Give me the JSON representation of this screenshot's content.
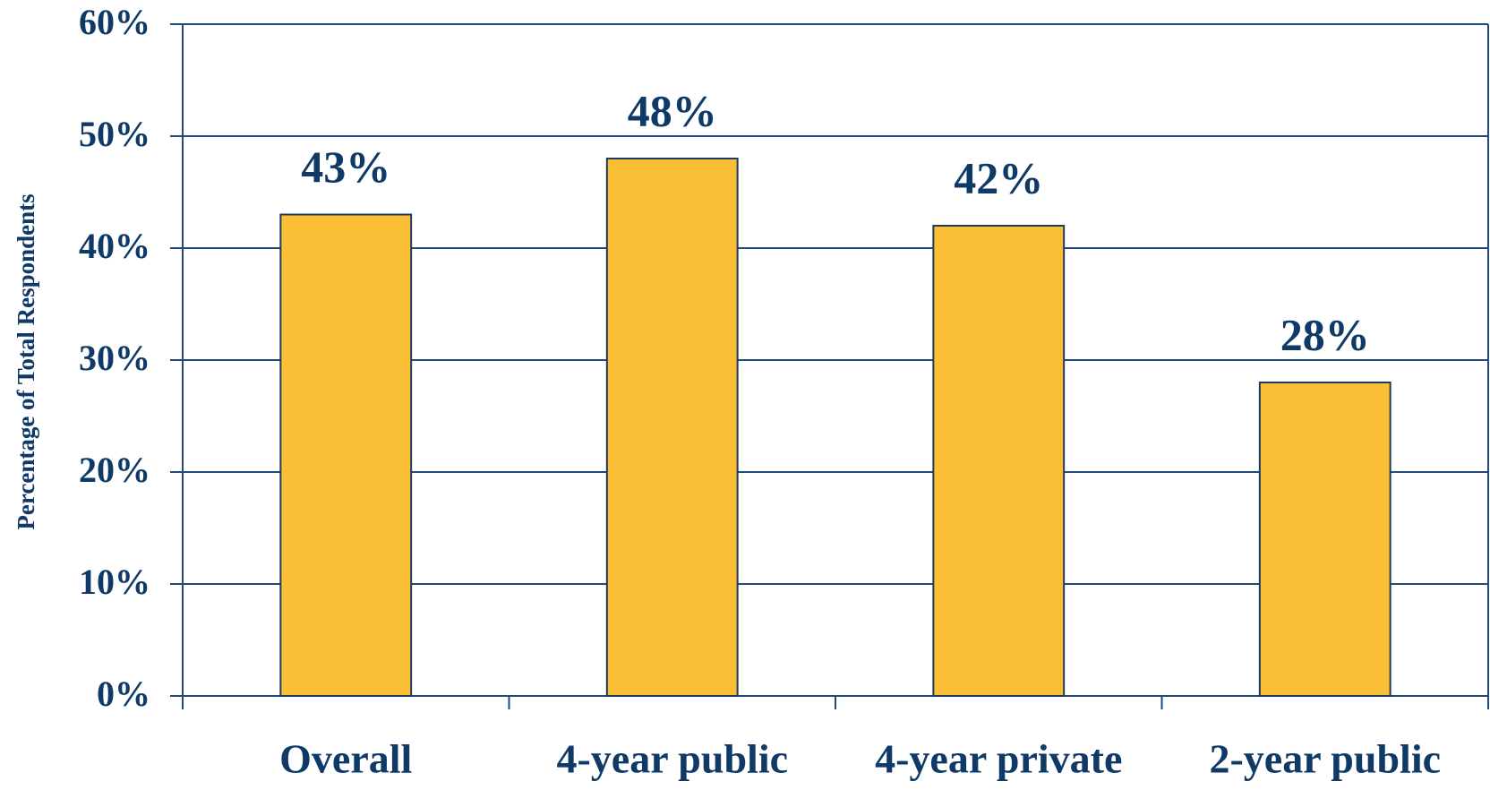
{
  "chart_data": {
    "type": "bar",
    "y_axis_label": "Percentage of Total Respondents",
    "categories": [
      "Overall",
      "4-year public",
      "4-year private",
      "2-year public"
    ],
    "values": [
      43,
      48,
      42,
      28
    ],
    "value_labels": [
      "43%",
      "48%",
      "42%",
      "28%"
    ],
    "color": "#fbbf36",
    "ylim": [
      0,
      60
    ],
    "yticks": [
      {
        "value": 0,
        "label": "0%"
      },
      {
        "value": 10,
        "label": "10%"
      },
      {
        "value": 20,
        "label": "20%"
      },
      {
        "value": 30,
        "label": "30%"
      },
      {
        "value": 40,
        "label": "40%"
      },
      {
        "value": 50,
        "label": "50%"
      },
      {
        "value": 60,
        "label": "60%"
      }
    ],
    "grid": true
  }
}
